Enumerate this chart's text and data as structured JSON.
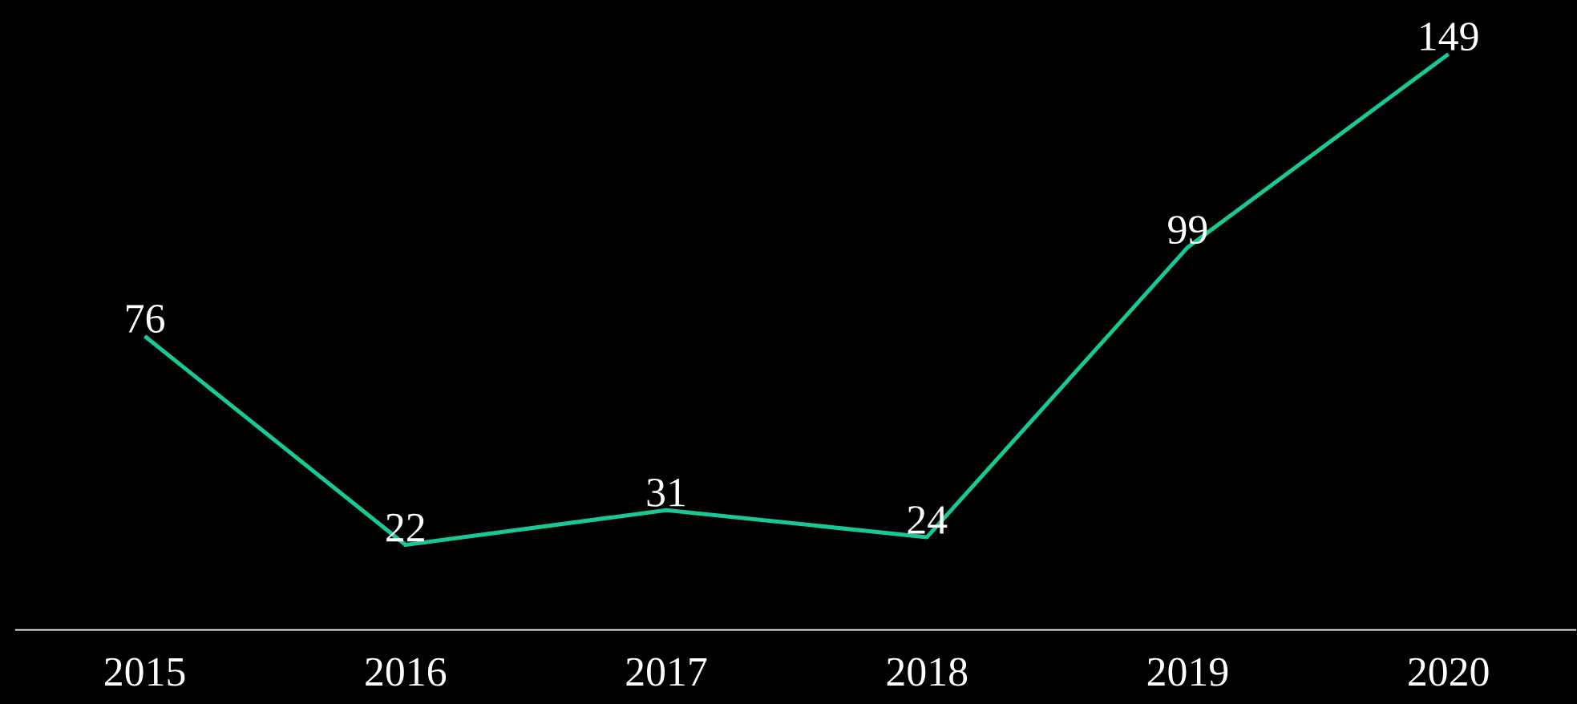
{
  "chart_data": {
    "type": "line",
    "categories": [
      "2015",
      "2016",
      "2017",
      "2018",
      "2019",
      "2020"
    ],
    "values": [
      76,
      22,
      31,
      24,
      99,
      149
    ],
    "color": "#18c995",
    "ylim": [
      0,
      163
    ],
    "data_labels": true,
    "tick_labels": "x",
    "marker": "none"
  }
}
